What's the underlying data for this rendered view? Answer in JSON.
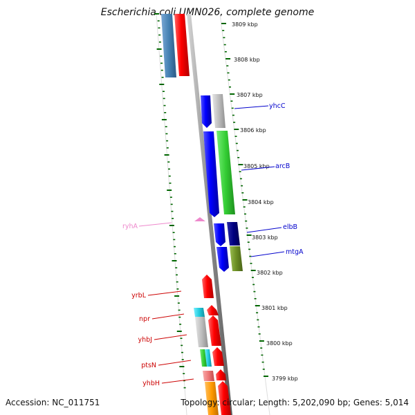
{
  "title": "Escherichia coli UMN026, complete genome",
  "footer": {
    "accession": "Accession: NC_011751",
    "summary": "Topology: circular; Length: 5,202,090 bp; Genes: 5,014"
  },
  "ruler": {
    "labels": [
      "3809 kbp",
      "3808 kbp",
      "3807 kbp",
      "3806 kbp",
      "3805 kbp",
      "3804 kbp",
      "3803 kbp",
      "3802 kbp",
      "3801 kbp",
      "3800 kbp",
      "3799 kbp"
    ]
  },
  "genes": [
    {
      "name": "yhcC",
      "color": "#0000cc"
    },
    {
      "name": "arcB",
      "color": "#0000cc"
    },
    {
      "name": "ryhA",
      "color": "#ee88cc"
    },
    {
      "name": "elbB",
      "color": "#0000cc"
    },
    {
      "name": "mtgA",
      "color": "#0000cc"
    },
    {
      "name": "yrbL",
      "color": "#cc0000"
    },
    {
      "name": "npr",
      "color": "#cc0000"
    },
    {
      "name": "yhbJ",
      "color": "#cc0000"
    },
    {
      "name": "ptsN",
      "color": "#cc0000"
    },
    {
      "name": "yhbH",
      "color": "#cc0000"
    }
  ],
  "colors": {
    "forward_red": "#ff0000",
    "reverse_blue": "#0000ff",
    "steel_blue": "#4682b4",
    "grey": "#bbbbbb",
    "green": "#33cc33",
    "navy": "#000080",
    "olive": "#6b8e23",
    "cyan": "#22ccdd",
    "salmon": "#ee7777",
    "orange": "#ff9900",
    "pink": "#ee88cc",
    "tick_green": "#006600",
    "backbone": "#888888"
  }
}
